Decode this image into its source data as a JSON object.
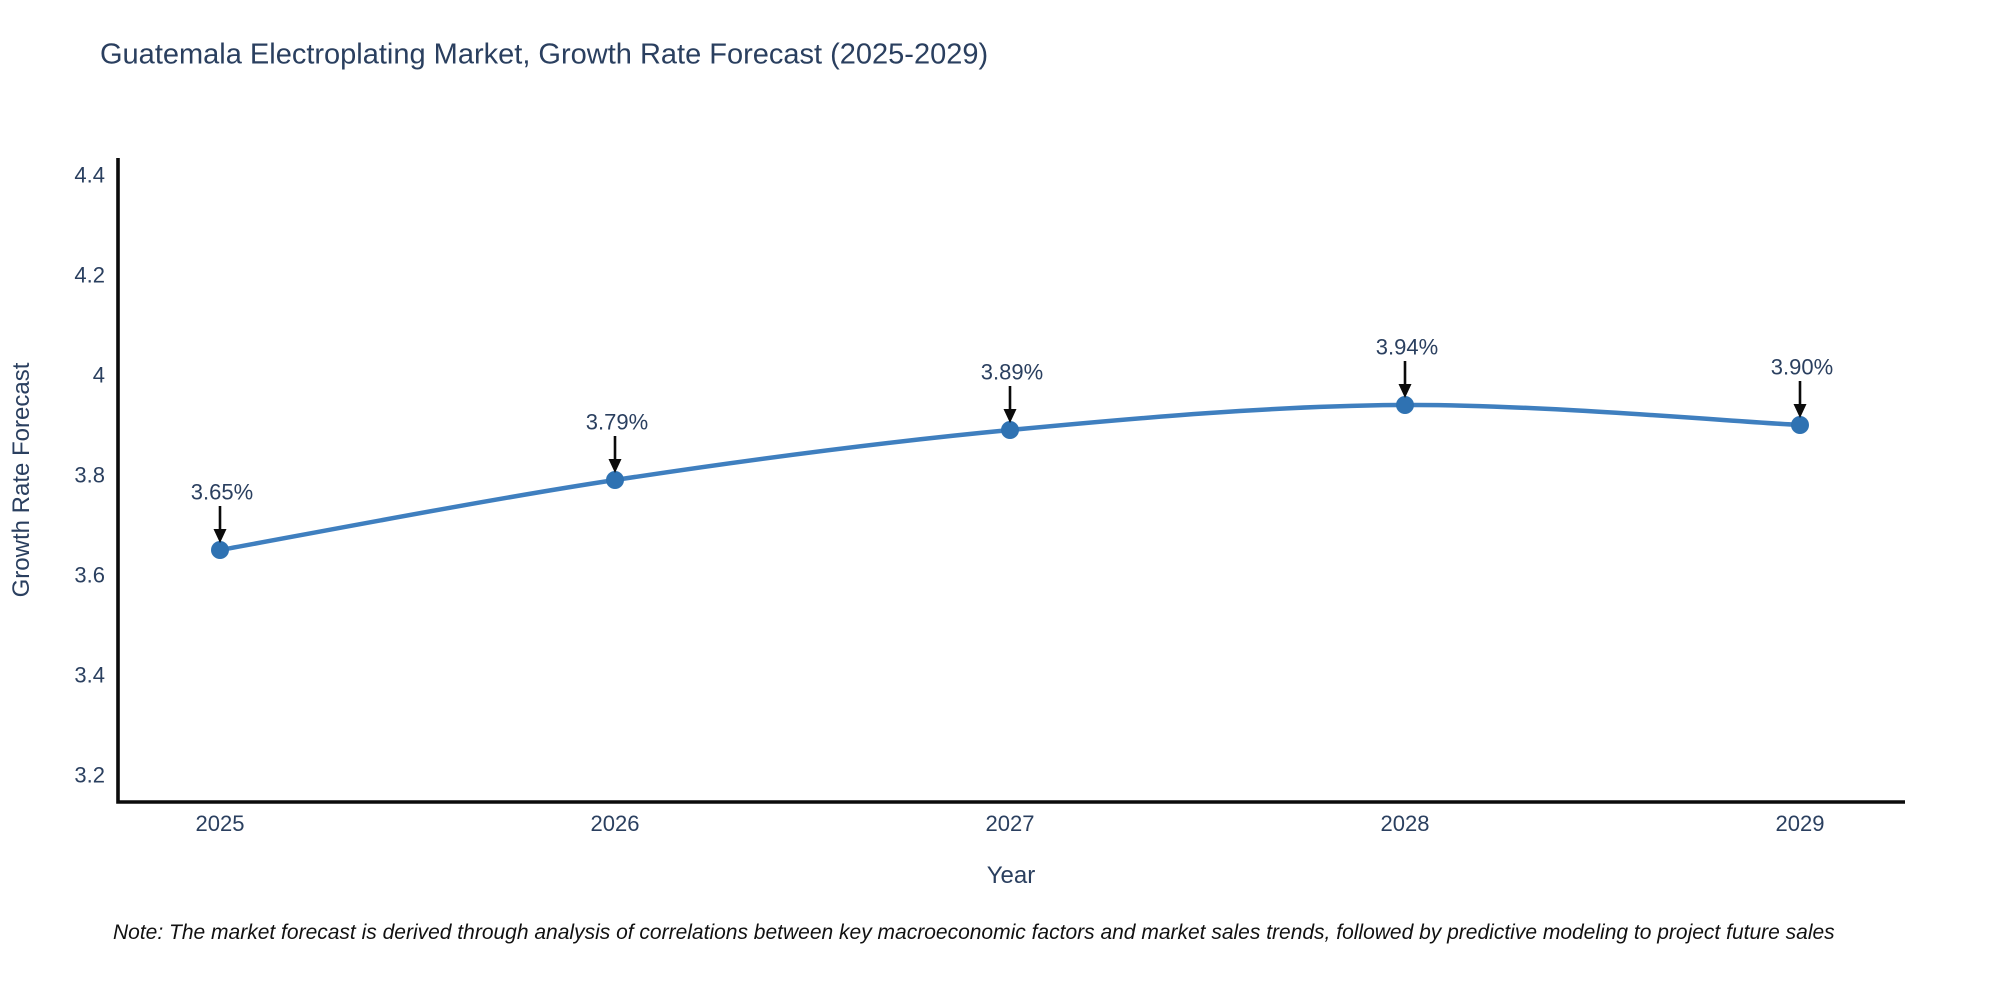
{
  "note": "Note: The market forecast is derived through analysis of correlations between key macroeconomic factors and market sales trends, followed by predictive modeling to project future sales",
  "chart_data": {
    "type": "line",
    "title": "Guatemala Electroplating Market, Growth Rate Forecast (2025-2029)",
    "xlabel": "Year",
    "ylabel": "Growth Rate Forecast",
    "x": [
      2025,
      2026,
      2027,
      2028,
      2029
    ],
    "y": [
      3.65,
      3.79,
      3.89,
      3.94,
      3.9
    ],
    "point_labels": [
      "3.65%",
      "3.79%",
      "3.89%",
      "3.94%",
      "3.90%"
    ],
    "xtick_labels": [
      "2025",
      "2026",
      "2027",
      "2028",
      "2029"
    ],
    "yticks": [
      3.2,
      3.4,
      3.6,
      3.8,
      4.0,
      4.2,
      4.4
    ],
    "ytick_labels": [
      "3.2",
      "3.4",
      "3.6",
      "3.8",
      "4",
      "4.2",
      "4.4"
    ],
    "ylim": [
      3.15,
      4.43
    ],
    "grid": false,
    "legend": "none",
    "line_shape": "spline",
    "colors": {
      "line": "#3f7fbf",
      "marker": "#2f72b2",
      "annotation_arrow": "#0b0b0b",
      "axis": "#0b0b0b",
      "title_text": "#2a3f5f",
      "tick_text": "#2a3f5f",
      "background": "#ffffff"
    }
  }
}
